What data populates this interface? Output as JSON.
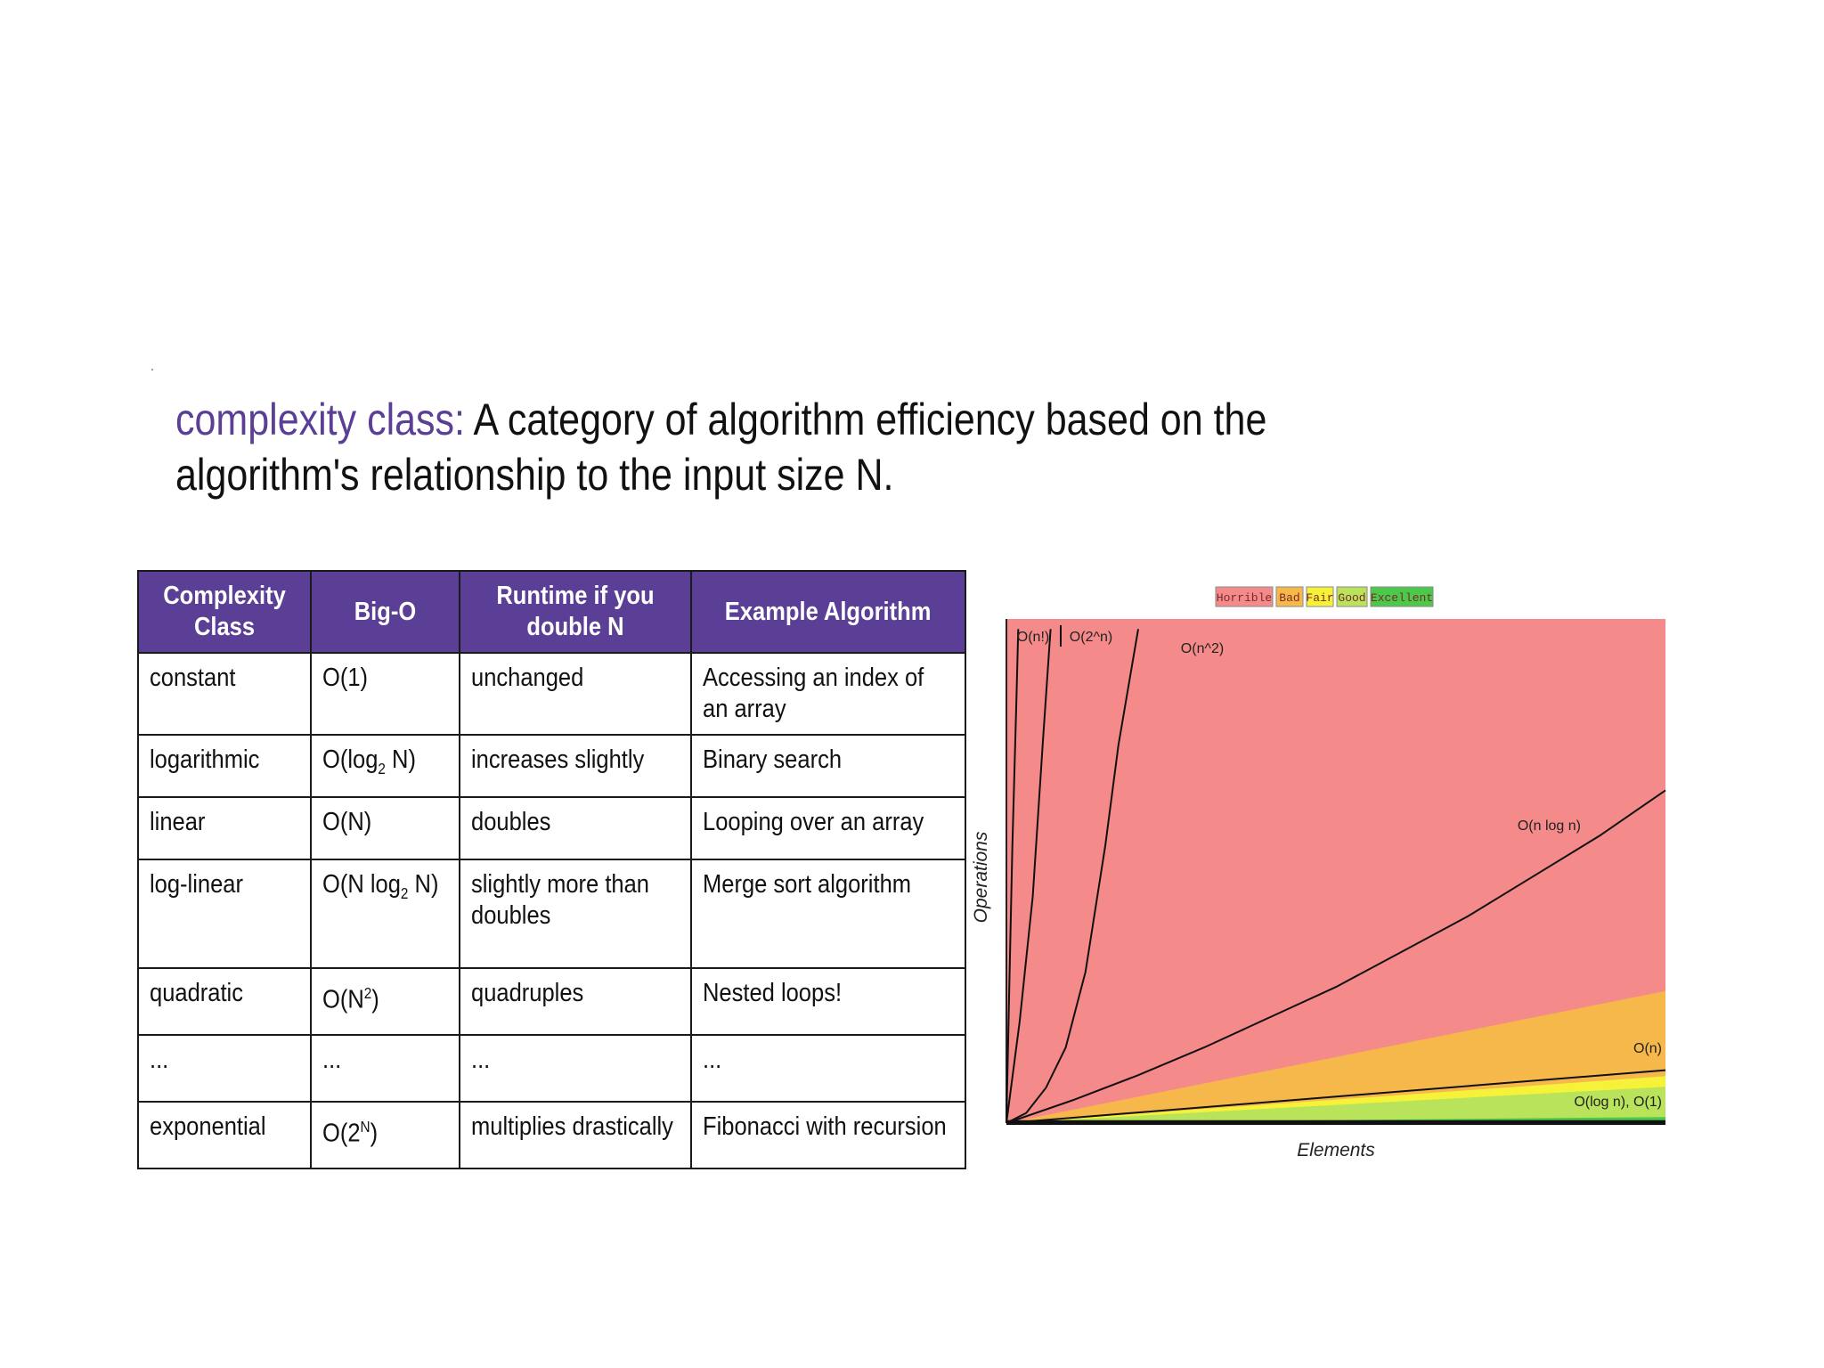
{
  "definition": {
    "term": "complexity class:",
    "text": " A category of algorithm efficiency based on the algorithm's relationship to the input size N."
  },
  "table": {
    "headers": [
      "Complexity Class",
      "Big-O",
      "Runtime if you double N",
      "Example Algorithm"
    ],
    "rows": [
      {
        "cls": "constant",
        "big_o": {
          "base": "O(1)"
        },
        "runtime": "unchanged",
        "example": "Accessing an index of an array"
      },
      {
        "cls": "logarithmic",
        "big_o": {
          "pre": "O(log",
          "sub": "2",
          "post": " N)"
        },
        "runtime": "increases slightly",
        "example": "Binary search"
      },
      {
        "cls": "linear",
        "big_o": {
          "base": "O(N)"
        },
        "runtime": "doubles",
        "example": "Looping over an array"
      },
      {
        "cls": "log-linear",
        "big_o": {
          "pre": "O(N log",
          "sub": "2",
          "post": " N)"
        },
        "runtime": "slightly more than doubles",
        "example": "Merge sort algorithm"
      },
      {
        "cls": "quadratic",
        "big_o": {
          "pre": "O(N",
          "sup": "2",
          "post": ")"
        },
        "runtime": "quadruples",
        "example": "Nested loops!"
      },
      {
        "cls": "...",
        "big_o": {
          "base": "..."
        },
        "runtime": "...",
        "example": "..."
      },
      {
        "cls": "exponential",
        "big_o": {
          "pre": "O(2",
          "sup": "N",
          "post": ")"
        },
        "runtime": "multiplies drastically",
        "example": "Fibonacci with recursion"
      }
    ]
  },
  "chart_data": {
    "type": "line",
    "title": "",
    "xlabel": "Elements",
    "ylabel": "Operations",
    "xlim": [
      0,
      1
    ],
    "ylim": [
      0,
      1
    ],
    "legend": {
      "placement": "top-center",
      "items": [
        {
          "label": "Horrible",
          "color": "#f58a8a"
        },
        {
          "label": "Bad",
          "color": "#f7b84b"
        },
        {
          "label": "Fair",
          "color": "#f6f23a"
        },
        {
          "label": "Good",
          "color": "#b9e35a"
        },
        {
          "label": "Excellent",
          "color": "#4cc84a"
        }
      ]
    },
    "regions": [
      {
        "name": "Horrible",
        "color": "#f58a8a",
        "upper_y_at_xmax": 1.0
      },
      {
        "name": "Bad",
        "color": "#f7b84b",
        "upper_y_at_xmax": 0.262
      },
      {
        "name": "Fair",
        "color": "#f6f23a",
        "upper_y_at_xmax": 0.093
      },
      {
        "name": "Good",
        "color": "#b9e35a",
        "upper_y_at_xmax": 0.072
      },
      {
        "name": "Excellent",
        "color": "#4cc84a",
        "upper_y_at_xmax": 0.012
      }
    ],
    "series": [
      {
        "name": "O(n!)",
        "points": [
          [
            0,
            0
          ],
          [
            0.004,
            0.25
          ],
          [
            0.009,
            0.55
          ],
          [
            0.015,
            0.83
          ],
          [
            0.018,
            0.98
          ]
        ]
      },
      {
        "name": "O(2^n)",
        "points": [
          [
            0,
            0
          ],
          [
            0.02,
            0.2
          ],
          [
            0.04,
            0.45
          ],
          [
            0.055,
            0.75
          ],
          [
            0.067,
            0.98
          ]
        ]
      },
      {
        "name": "O(n^2)",
        "points": [
          [
            0,
            0
          ],
          [
            0.03,
            0.02
          ],
          [
            0.06,
            0.07
          ],
          [
            0.09,
            0.15
          ],
          [
            0.12,
            0.3
          ],
          [
            0.15,
            0.55
          ],
          [
            0.17,
            0.75
          ],
          [
            0.2,
            0.98
          ]
        ]
      },
      {
        "name": "O(n log n)",
        "points": [
          [
            0,
            0
          ],
          [
            0.1,
            0.045
          ],
          [
            0.2,
            0.095
          ],
          [
            0.3,
            0.15
          ],
          [
            0.4,
            0.21
          ],
          [
            0.5,
            0.27
          ],
          [
            0.6,
            0.34
          ],
          [
            0.7,
            0.41
          ],
          [
            0.8,
            0.49
          ],
          [
            0.9,
            0.57
          ],
          [
            1.0,
            0.66
          ]
        ]
      },
      {
        "name": "O(n)",
        "points": [
          [
            0,
            0
          ],
          [
            1.0,
            0.105
          ]
        ]
      },
      {
        "name": "O(log n), O(1)",
        "points": [
          [
            0,
            0.004
          ],
          [
            1.0,
            0.004
          ]
        ]
      }
    ]
  }
}
